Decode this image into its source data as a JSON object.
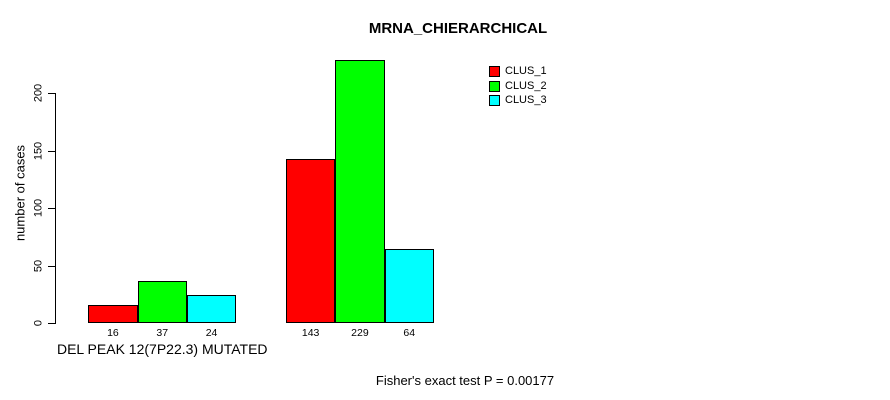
{
  "chart_data": {
    "type": "bar",
    "title": "MRNA_CHIERARCHICAL",
    "xlabel": "",
    "ylabel": "number of cases",
    "categories": [
      "DEL PEAK 12(7P22.3) MUTATED",
      ""
    ],
    "series": [
      {
        "name": "CLUS_1",
        "color": "#FF0000",
        "values": [
          16,
          143
        ]
      },
      {
        "name": "CLUS_2",
        "color": "#00FF00",
        "values": [
          37,
          229
        ]
      },
      {
        "name": "CLUS_3",
        "color": "#00FFFF",
        "values": [
          24,
          64
        ]
      }
    ],
    "yticks": [
      0,
      50,
      100,
      150,
      200
    ],
    "ylim": [
      0,
      240
    ],
    "grid": false,
    "show_values_below_bars": true,
    "legend_position": "top-right",
    "annotation": "Fisher's exact test P = 0.00177"
  },
  "colors": {
    "bar_border": "#000000",
    "axis": "#000000",
    "background": "#ffffff",
    "clus_1": "#FF0000",
    "clus_2": "#00FF00",
    "clus_3": "#00FFFF"
  }
}
